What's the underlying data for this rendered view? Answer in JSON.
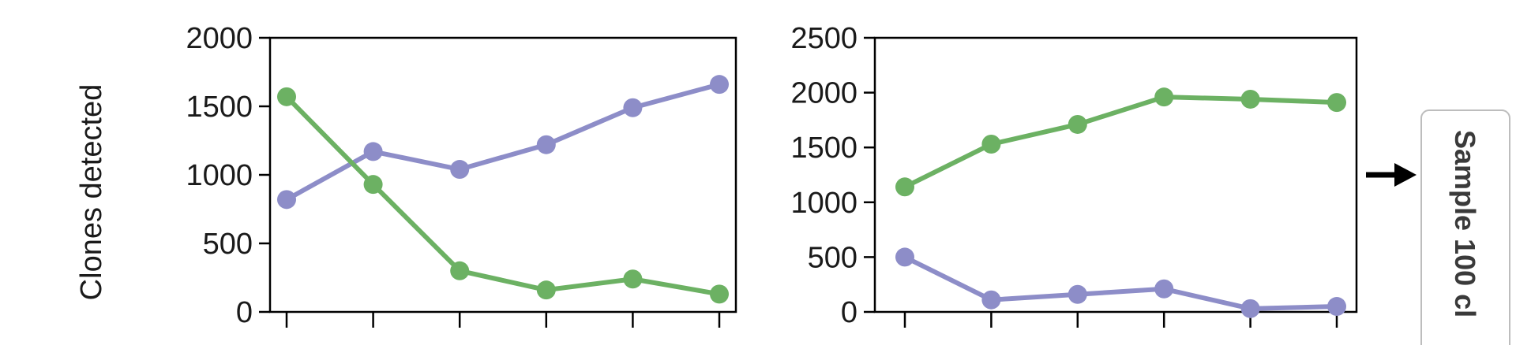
{
  "chart_data": [
    {
      "type": "line",
      "ylabel": "Clones detected",
      "ylim": [
        0,
        2000
      ],
      "yticks": [
        0,
        500,
        1000,
        1500,
        2000
      ],
      "x": [
        1,
        2,
        3,
        4,
        5,
        6
      ],
      "series": [
        {
          "color": "#8d8dc8",
          "values": [
            820,
            1170,
            1040,
            1220,
            1490,
            1660
          ]
        },
        {
          "color": "#6cb163",
          "values": [
            1570,
            930,
            300,
            160,
            240,
            130
          ]
        }
      ]
    },
    {
      "type": "line",
      "ylabel": "",
      "ylim": [
        0,
        2500
      ],
      "yticks": [
        0,
        500,
        1000,
        1500,
        2000,
        2500
      ],
      "x": [
        1,
        2,
        3,
        4,
        5,
        6
      ],
      "series": [
        {
          "color": "#8d8dc8",
          "values": [
            500,
            110,
            160,
            210,
            30,
            50
          ]
        },
        {
          "color": "#6cb163",
          "values": [
            1140,
            1530,
            1710,
            1960,
            1940,
            1910
          ]
        }
      ]
    }
  ],
  "side_label": {
    "text": "Sample 100 cl",
    "arrow_icon": "right-arrow-icon"
  }
}
